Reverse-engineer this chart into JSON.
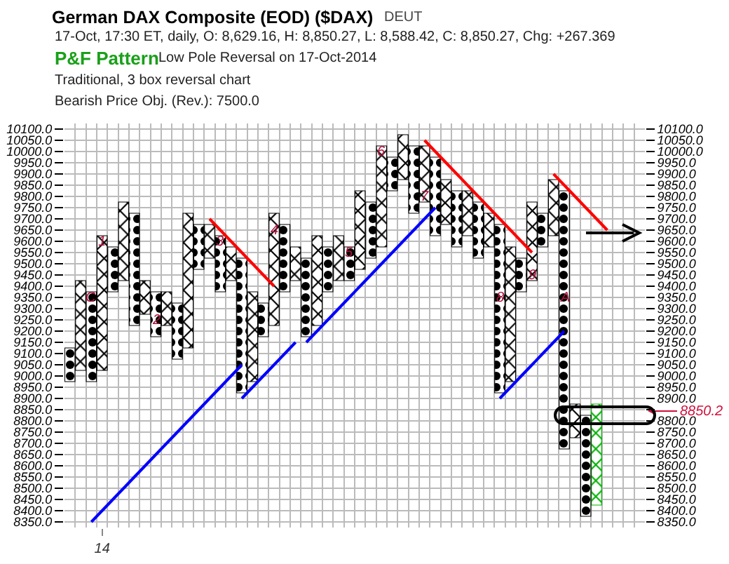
{
  "chart_data": {
    "type": "bar",
    "title": "German DAX Composite (EOD) ($DAX)",
    "annotations": [
      "DEUT",
      "17-Oct, 17:30 ET, daily, O: 8,629.16, H: 8,850.27, L: 8,588.42, C: 8,850.27, Chg: +267.369",
      "P&F Pattern",
      "Low Pole Reversal on 17-Oct-2014",
      "Traditional, 3 box reversal chart",
      "Bearish Price Obj. (Rev.): 7500.0",
      "8850.2",
      {
        "text": "C",
        "y": 9350
      },
      {
        "text": "1",
        "y": 9600
      },
      {
        "text": "2",
        "y": 9250
      },
      {
        "text": "3",
        "y": 9600
      },
      {
        "text": "4",
        "y": 9650
      },
      {
        "text": "5",
        "y": 9550
      },
      {
        "text": "6",
        "y": 10000
      },
      {
        "text": "7",
        "y": 9800
      },
      {
        "text": "8",
        "y": 9350
      },
      {
        "text": "9",
        "y": 9450
      },
      {
        "text": "A",
        "y": 9350
      }
    ],
    "categories": [
      null,
      null,
      null,
      "14",
      null,
      null,
      null,
      null,
      null,
      null,
      null,
      null,
      null,
      null,
      null,
      null,
      null,
      null,
      null,
      null,
      null,
      null,
      null,
      null,
      null,
      null,
      null,
      null,
      null,
      null,
      null,
      null,
      null,
      null,
      null,
      null,
      null,
      null,
      null,
      null,
      null,
      null,
      null,
      null,
      null,
      null,
      null,
      null,
      null,
      null,
      null,
      null,
      null,
      null
    ],
    "ylim": [
      8325,
      10125
    ],
    "yticks": [
      {
        "value": 8350,
        "label": "8350.0"
      },
      {
        "value": 8400,
        "label": "8400.0"
      },
      {
        "value": 8450,
        "label": "8450.0"
      },
      {
        "value": 8500,
        "label": "8500.0"
      },
      {
        "value": 8550,
        "label": "8550.0"
      },
      {
        "value": 8600,
        "label": "8600.0"
      },
      {
        "value": 8650,
        "label": "8650.0"
      },
      {
        "value": 8700,
        "label": "8700.0"
      },
      {
        "value": 8750,
        "label": "8750.0"
      },
      {
        "value": 8800,
        "label": "8800.0"
      },
      {
        "value": 8850,
        "label": "8850.0"
      },
      {
        "value": 8900,
        "label": "8900.0"
      },
      {
        "value": 8950,
        "label": "8950.0"
      },
      {
        "value": 9000,
        "label": "9000.0"
      },
      {
        "value": 9050,
        "label": "9050.0"
      },
      {
        "value": 9100,
        "label": "9100.0"
      },
      {
        "value": 9150,
        "label": "9150.0"
      },
      {
        "value": 9200,
        "label": "9200.0"
      },
      {
        "value": 9250,
        "label": "9250.0"
      },
      {
        "value": 9300,
        "label": "9300.0"
      },
      {
        "value": 9350,
        "label": "9350.0"
      },
      {
        "value": 9400,
        "label": "9400.0"
      },
      {
        "value": 9450,
        "label": "9450.0"
      },
      {
        "value": 9500,
        "label": "9500.0"
      },
      {
        "value": 9550,
        "label": "9550.0"
      },
      {
        "value": 9600,
        "label": "9600.0"
      },
      {
        "value": 9650,
        "label": "9650.0"
      },
      {
        "value": 9700,
        "label": "9700.0"
      },
      {
        "value": 9750,
        "label": "9750.0"
      },
      {
        "value": 9800,
        "label": "9800.0"
      },
      {
        "value": 9850,
        "label": "9850.0"
      },
      {
        "value": 9900,
        "label": "9900.0"
      },
      {
        "value": 9950,
        "label": "9950.0"
      },
      {
        "value": 10000,
        "label": "10000.0"
      },
      {
        "value": 10050,
        "label": "10050.0"
      },
      {
        "value": 10100,
        "label": "10100.0"
      }
    ],
    "y2lim": [
      8325,
      10125
    ],
    "y2ticks": [
      {
        "value": 8350,
        "label": "8350.0"
      },
      {
        "value": 8400,
        "label": "8400.0"
      },
      {
        "value": 8450,
        "label": "8450.0"
      },
      {
        "value": 8500,
        "label": "8500.0"
      },
      {
        "value": 8550,
        "label": "8550.0"
      },
      {
        "value": 8600,
        "label": "8600.0"
      },
      {
        "value": 8650,
        "label": "8650.0"
      },
      {
        "value": 8700,
        "label": "8700.0"
      },
      {
        "value": 8750,
        "label": "8750.0"
      },
      {
        "value": 8800,
        "label": "8800.0"
      },
      {
        "value": 8850,
        "label": null
      },
      {
        "value": 8900,
        "label": "8900.0"
      },
      {
        "value": 8950,
        "label": "8950.0"
      },
      {
        "value": 9000,
        "label": "9000.0"
      },
      {
        "value": 9050,
        "label": "9050.0"
      },
      {
        "value": 9100,
        "label": "9100.0"
      },
      {
        "value": 9150,
        "label": "9150.0"
      },
      {
        "value": 9200,
        "label": "9200.0"
      },
      {
        "value": 9250,
        "label": "9250.0"
      },
      {
        "value": 9300,
        "label": "9300.0"
      },
      {
        "value": 9350,
        "label": "9350.0"
      },
      {
        "value": 9400,
        "label": "9400.0"
      },
      {
        "value": 9450,
        "label": "9450.0"
      },
      {
        "value": 9500,
        "label": "9500.0"
      },
      {
        "value": 9550,
        "label": "9550.0"
      },
      {
        "value": 9600,
        "label": "9600.0"
      },
      {
        "value": 9650,
        "label": "9650.0"
      },
      {
        "value": 9700,
        "label": "9700.0"
      },
      {
        "value": 9750,
        "label": "9750.0"
      },
      {
        "value": 9800,
        "label": "9800.0"
      },
      {
        "value": 9850,
        "label": "9850.0"
      },
      {
        "value": 9900,
        "label": "9900.0"
      },
      {
        "value": 9950,
        "label": "9950.0"
      },
      {
        "value": 10000,
        "label": "10000.0"
      },
      {
        "value": 10050,
        "label": "10050.0"
      },
      {
        "value": 10100,
        "label": "10100.0"
      }
    ],
    "grid": true,
    "series": [
      {
        "marker": "cross",
        "color": "#000000",
        "values": [
          null,
          400,
          null,
          600,
          null,
          350,
          null,
          150,
          null,
          150,
          null,
          600,
          null,
          150,
          null,
          150,
          null,
          400,
          null,
          500,
          null,
          150,
          null,
          400,
          null,
          200,
          null,
          350,
          null,
          450,
          null,
          200,
          null,
          250,
          null,
          200,
          null,
          200,
          null,
          150,
          null,
          600,
          null,
          350,
          null,
          250,
          null,
          150,
          null,
          null,
          null,
          null,
          null,
          null
        ],
        "base": [
          null,
          9025,
          null,
          9025,
          null,
          9425,
          null,
          9275,
          null,
          9225,
          null,
          9125,
          null,
          9525,
          null,
          9425,
          null,
          8975,
          null,
          9225,
          null,
          9425,
          null,
          9225,
          null,
          9425,
          null,
          9475,
          null,
          9575,
          null,
          9875,
          null,
          9775,
          null,
          9675,
          null,
          9625,
          null,
          9575,
          null,
          8975,
          null,
          9425,
          null,
          9625,
          null,
          8725,
          null,
          null,
          null,
          null,
          null,
          null
        ]
      },
      {
        "marker": "circle",
        "color": "#000000",
        "axis": "y2",
        "values": [
          150,
          null,
          400,
          null,
          200,
          null,
          500,
          null,
          200,
          null,
          250,
          null,
          200,
          null,
          250,
          null,
          600,
          null,
          150,
          null,
          300,
          null,
          350,
          null,
          200,
          null,
          150,
          null,
          250,
          null,
          150,
          null,
          300,
          null,
          350,
          null,
          250,
          null,
          250,
          null,
          750,
          null,
          150,
          null,
          150,
          null,
          1150,
          null,
          450,
          null,
          null,
          null,
          null,
          null
        ],
        "base": [
          8975,
          null,
          8975,
          null,
          9375,
          null,
          9225,
          null,
          9175,
          null,
          9075,
          null,
          9475,
          null,
          9375,
          null,
          8925,
          null,
          9175,
          null,
          9375,
          null,
          9175,
          null,
          9375,
          null,
          9425,
          null,
          9525,
          null,
          9825,
          null,
          9725,
          null,
          9625,
          null,
          9575,
          null,
          9525,
          null,
          8925,
          null,
          9375,
          null,
          9575,
          null,
          8675,
          null,
          8375,
          null,
          null,
          null,
          null,
          null
        ]
      },
      {
        "marker": "cross",
        "color": "#00b000",
        "values": [
          null,
          null,
          null,
          null,
          null,
          null,
          null,
          null,
          null,
          null,
          null,
          null,
          null,
          null,
          null,
          null,
          null,
          null,
          null,
          null,
          null,
          null,
          null,
          null,
          null,
          null,
          null,
          null,
          null,
          null,
          null,
          null,
          null,
          null,
          null,
          null,
          null,
          null,
          null,
          null,
          null,
          null,
          null,
          null,
          null,
          null,
          null,
          null,
          null,
          450,
          null,
          null,
          null,
          null
        ],
        "base": [
          null,
          null,
          null,
          null,
          null,
          null,
          null,
          null,
          null,
          null,
          null,
          null,
          null,
          null,
          null,
          null,
          null,
          null,
          null,
          null,
          null,
          null,
          null,
          null,
          null,
          null,
          null,
          null,
          null,
          null,
          null,
          null,
          null,
          null,
          null,
          null,
          null,
          null,
          null,
          null,
          null,
          null,
          null,
          null,
          null,
          null,
          null,
          null,
          null,
          8425,
          null,
          null,
          null,
          null
        ]
      },
      {
        "type": "line",
        "color": "#0000ff",
        "values": [
          null,
          null,
          8350,
          8400,
          8450,
          8500,
          8550,
          8600,
          8650,
          8700,
          8750,
          8800,
          8850,
          8900,
          8950,
          9000,
          9050,
          null,
          null,
          null,
          null,
          null,
          null,
          null,
          null,
          null,
          null,
          null,
          null,
          null,
          null,
          null,
          null,
          null,
          null,
          null,
          null,
          null,
          null,
          null,
          null,
          null,
          null,
          null,
          null,
          null,
          null,
          null,
          null,
          null,
          null,
          null,
          null,
          null
        ]
      },
      {
        "type": "line",
        "color": "#0000ff",
        "values": [
          null,
          null,
          null,
          null,
          null,
          null,
          null,
          null,
          null,
          null,
          null,
          null,
          null,
          null,
          null,
          null,
          8900,
          8950,
          9000,
          9050,
          9100,
          9150,
          null,
          null,
          null,
          null,
          null,
          null,
          null,
          null,
          null,
          null,
          null,
          null,
          null,
          null,
          null,
          null,
          null,
          null,
          null,
          null,
          null,
          null,
          null,
          null,
          null,
          null,
          null,
          null,
          null,
          null,
          null,
          null
        ]
      },
      {
        "type": "line",
        "color": "#0000ff",
        "values": [
          null,
          null,
          null,
          null,
          null,
          null,
          null,
          null,
          null,
          null,
          null,
          null,
          null,
          null,
          null,
          null,
          null,
          null,
          null,
          null,
          null,
          null,
          9150,
          9200,
          9250,
          9300,
          9350,
          9400,
          9450,
          9500,
          9550,
          9600,
          9650,
          9700,
          9750,
          null,
          null,
          null,
          null,
          null,
          null,
          null,
          null,
          null,
          null,
          null,
          null,
          null,
          null,
          null,
          null,
          null,
          null,
          null
        ]
      },
      {
        "type": "line",
        "color": "#0000ff",
        "values": [
          null,
          null,
          null,
          null,
          null,
          null,
          null,
          null,
          null,
          null,
          null,
          null,
          null,
          null,
          null,
          null,
          null,
          null,
          null,
          null,
          null,
          null,
          null,
          null,
          null,
          null,
          null,
          null,
          null,
          null,
          null,
          null,
          null,
          null,
          null,
          null,
          null,
          null,
          null,
          null,
          8900,
          8950,
          9000,
          9050,
          9100,
          9150,
          9200,
          null,
          null,
          null,
          null,
          null,
          null,
          null
        ]
      },
      {
        "type": "line",
        "color": "#ff0000",
        "values": [
          null,
          null,
          null,
          null,
          null,
          null,
          null,
          null,
          null,
          null,
          null,
          null,
          null,
          9700,
          9650,
          9600,
          9550,
          9500,
          9450,
          9400,
          null,
          null,
          null,
          null,
          null,
          null,
          null,
          null,
          null,
          null,
          null,
          null,
          null,
          null,
          null,
          null,
          null,
          null,
          null,
          null,
          null,
          null,
          null,
          null,
          null,
          null,
          null,
          null,
          null,
          null,
          null,
          null,
          null,
          null
        ]
      },
      {
        "type": "line",
        "color": "#ff0000",
        "values": [
          null,
          null,
          null,
          null,
          null,
          null,
          null,
          null,
          null,
          null,
          null,
          null,
          null,
          null,
          null,
          null,
          null,
          null,
          null,
          null,
          null,
          null,
          null,
          null,
          null,
          null,
          null,
          null,
          null,
          null,
          null,
          null,
          null,
          10050,
          10000,
          9950,
          9900,
          9850,
          9800,
          9750,
          9700,
          9650,
          9600,
          9550,
          null,
          null,
          null,
          null,
          null,
          null,
          null,
          null,
          null,
          null
        ]
      },
      {
        "type": "line",
        "color": "#ff0000",
        "values": [
          null,
          null,
          null,
          null,
          null,
          null,
          null,
          null,
          null,
          null,
          null,
          null,
          null,
          null,
          null,
          null,
          null,
          null,
          null,
          null,
          null,
          null,
          null,
          null,
          null,
          null,
          null,
          null,
          null,
          null,
          null,
          null,
          null,
          null,
          null,
          null,
          null,
          null,
          null,
          null,
          null,
          null,
          null,
          null,
          null,
          9900,
          9850,
          9800,
          9750,
          9700,
          9650,
          null,
          null,
          null
        ]
      }
    ]
  }
}
